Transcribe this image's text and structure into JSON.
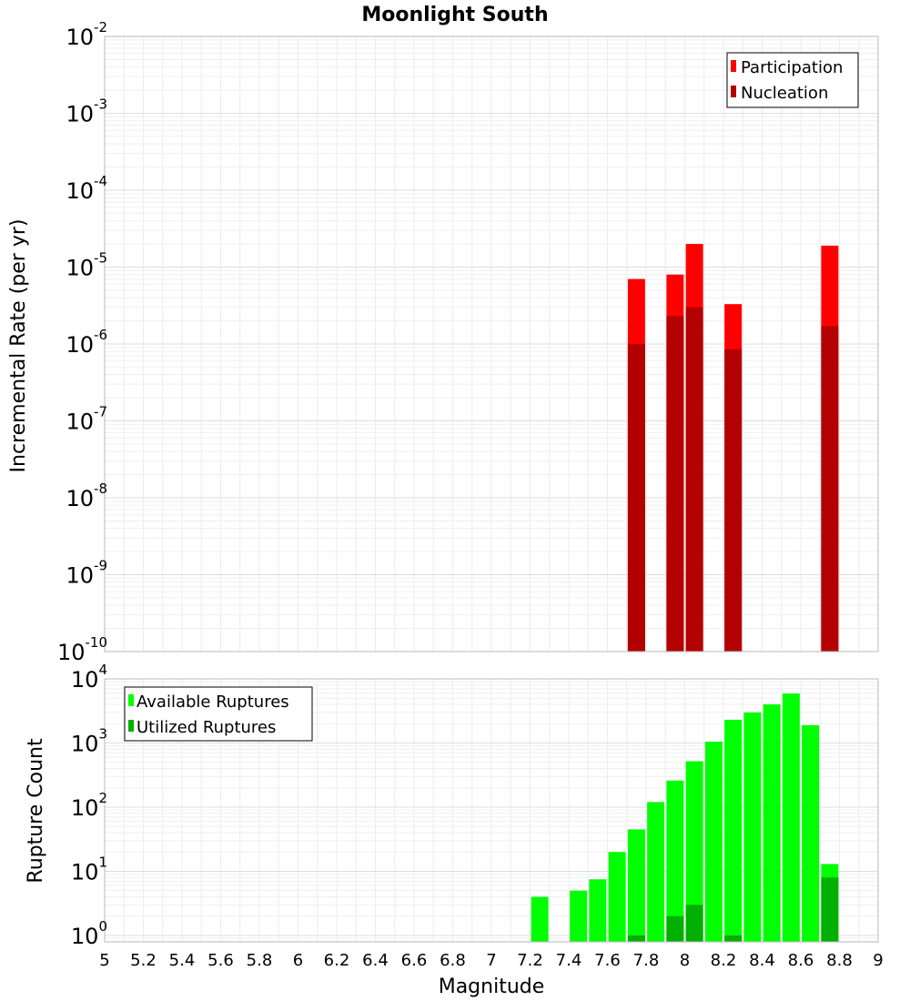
{
  "chart_data": [
    {
      "type": "bar",
      "title": "Moonlight South",
      "xlabel": "Magnitude",
      "ylabel": "Incremental Rate (per yr)",
      "yscale": "log",
      "ylim_exp": [
        -10,
        -2
      ],
      "xlim": [
        5,
        9
      ],
      "y_ticks": [
        "10^-2",
        "10^-3",
        "10^-4",
        "10^-5",
        "10^-6",
        "10^-7",
        "10^-8",
        "10^-9",
        "10^-10"
      ],
      "legend_position": "top-right",
      "grid": true,
      "series": [
        {
          "name": "Participation",
          "color": "#ff0000",
          "points": [
            [
              7.75,
              7e-06
            ],
            [
              7.95,
              8e-06
            ],
            [
              8.05,
              2e-05
            ],
            [
              8.25,
              3.3e-06
            ],
            [
              8.75,
              1.9e-05
            ]
          ]
        },
        {
          "name": "Nucleation",
          "color": "#b30000",
          "points": [
            [
              7.75,
              1e-06
            ],
            [
              7.95,
              2.3e-06
            ],
            [
              8.05,
              3e-06
            ],
            [
              8.25,
              8.5e-07
            ],
            [
              8.75,
              1.7e-06
            ]
          ]
        }
      ]
    },
    {
      "type": "bar",
      "title": "",
      "xlabel": "Magnitude",
      "ylabel": "Rupture Count",
      "yscale": "log",
      "ylim_exp": [
        -0.1,
        4
      ],
      "xlim": [
        5,
        9
      ],
      "x_ticks": [
        "5",
        "5.2",
        "5.4",
        "5.6",
        "5.8",
        "6",
        "6.2",
        "6.4",
        "6.6",
        "6.8",
        "7",
        "7.2",
        "7.4",
        "7.6",
        "7.8",
        "8",
        "8.2",
        "8.4",
        "8.6",
        "8.8",
        "9"
      ],
      "y_ticks": [
        "10^4",
        "10^3",
        "10^2",
        "10^1",
        "10^0"
      ],
      "legend_position": "top-left",
      "grid": true,
      "series": [
        {
          "name": "Available Ruptures",
          "color": "#00ff00",
          "points": [
            [
              7.25,
              4
            ],
            [
              7.45,
              5
            ],
            [
              7.55,
              7.5
            ],
            [
              7.65,
              20
            ],
            [
              7.75,
              45
            ],
            [
              7.85,
              120
            ],
            [
              7.95,
              260
            ],
            [
              8.05,
              520
            ],
            [
              8.15,
              1050
            ],
            [
              8.25,
              2300
            ],
            [
              8.35,
              3000
            ],
            [
              8.45,
              4000
            ],
            [
              8.55,
              5900
            ],
            [
              8.65,
              1900
            ],
            [
              8.75,
              13
            ]
          ]
        },
        {
          "name": "Utilized Ruptures",
          "color": "#00b000",
          "points": [
            [
              7.75,
              1
            ],
            [
              7.95,
              2
            ],
            [
              8.05,
              3
            ],
            [
              8.25,
              1
            ],
            [
              8.75,
              8
            ]
          ]
        }
      ]
    }
  ]
}
